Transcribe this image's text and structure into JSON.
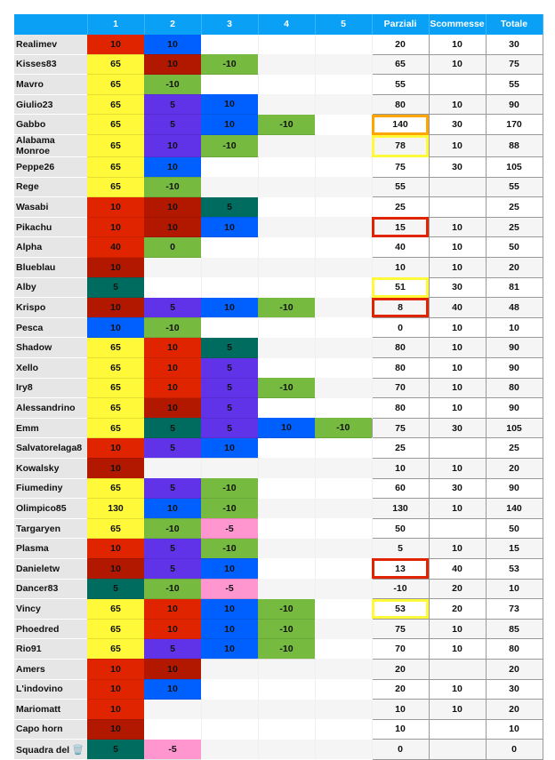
{
  "header": {
    "name": "",
    "rounds": [
      "1",
      "2",
      "3",
      "4",
      "5"
    ],
    "parziali": "Parziali",
    "scommesse": "Scommesse",
    "totale": "Totale"
  },
  "colors": {
    "R": "#e02400",
    "D": "#b21800",
    "B": "#0060ff",
    "Y": "#fff93a",
    "G": "#76bb40",
    "P": "#6033e8",
    "T": "#006b5f",
    "K": "#ff96d0",
    "header": "#0aa0f5",
    "hl_orange": "#ffa500",
    "hl_yellow": "#fff93a",
    "hl_red": "#e02400"
  },
  "rows": [
    {
      "name": "Realimev",
      "cells": [
        [
          "10",
          "R"
        ],
        [
          "10",
          "B"
        ]
      ],
      "parziali": "20",
      "scommesse": "10",
      "totale": "30"
    },
    {
      "name": "Kisses83",
      "cells": [
        [
          "65",
          "Y"
        ],
        [
          "10",
          "D"
        ],
        [
          "-10",
          "G"
        ]
      ],
      "parziali": "65",
      "scommesse": "10",
      "totale": "75"
    },
    {
      "name": "Mavro",
      "cells": [
        [
          "65",
          "Y"
        ],
        [
          "-10",
          "G"
        ]
      ],
      "parziali": "55",
      "scommesse": "",
      "totale": "55"
    },
    {
      "name": "Giulio23",
      "cells": [
        [
          "65",
          "Y"
        ],
        [
          "5",
          "P"
        ],
        [
          "10",
          "B"
        ]
      ],
      "parziali": "80",
      "scommesse": "10",
      "totale": "90"
    },
    {
      "name": "Gabbo",
      "cells": [
        [
          "65",
          "Y"
        ],
        [
          "5",
          "P"
        ],
        [
          "10",
          "B"
        ],
        [
          "-10",
          "G"
        ]
      ],
      "parziali": "140",
      "scommesse": "30",
      "totale": "170",
      "highlight": "hl_orange"
    },
    {
      "name": "Alabama Monroe",
      "cells": [
        [
          "65",
          "Y"
        ],
        [
          "10",
          "P"
        ],
        [
          "-10",
          "G"
        ]
      ],
      "parziali": "78",
      "scommesse": "10",
      "totale": "88",
      "highlight": "hl_yellow"
    },
    {
      "name": "Peppe26",
      "cells": [
        [
          "65",
          "Y"
        ],
        [
          "10",
          "B"
        ]
      ],
      "parziali": "75",
      "scommesse": "30",
      "totale": "105"
    },
    {
      "name": "Rege",
      "cells": [
        [
          "65",
          "Y"
        ],
        [
          "-10",
          "G"
        ]
      ],
      "parziali": "55",
      "scommesse": "",
      "totale": "55"
    },
    {
      "name": "Wasabi",
      "cells": [
        [
          "10",
          "R"
        ],
        [
          "10",
          "D"
        ],
        [
          "5",
          "T"
        ]
      ],
      "parziali": "25",
      "scommesse": "",
      "totale": "25"
    },
    {
      "name": "Pikachu",
      "cells": [
        [
          "10",
          "R"
        ],
        [
          "10",
          "D"
        ],
        [
          "10",
          "B"
        ]
      ],
      "parziali": "15",
      "scommesse": "10",
      "totale": "25",
      "highlight": "hl_red"
    },
    {
      "name": "Alpha",
      "cells": [
        [
          "40",
          "R"
        ],
        [
          "0",
          "G"
        ]
      ],
      "parziali": "40",
      "scommesse": "10",
      "totale": "50"
    },
    {
      "name": "Blueblau",
      "cells": [
        [
          "10",
          "D"
        ]
      ],
      "parziali": "10",
      "scommesse": "10",
      "totale": "20"
    },
    {
      "name": "Alby",
      "cells": [
        [
          "5",
          "T"
        ]
      ],
      "parziali": "51",
      "scommesse": "30",
      "totale": "81",
      "highlight": "hl_yellow"
    },
    {
      "name": "Krispo",
      "cells": [
        [
          "10",
          "D"
        ],
        [
          "5",
          "P"
        ],
        [
          "10",
          "B"
        ],
        [
          "-10",
          "G"
        ]
      ],
      "parziali": "8",
      "scommesse": "40",
      "totale": "48",
      "highlight": "hl_red"
    },
    {
      "name": "Pesca",
      "cells": [
        [
          "10",
          "B"
        ],
        [
          "-10",
          "G"
        ]
      ],
      "parziali": "0",
      "scommesse": "10",
      "totale": "10"
    },
    {
      "name": "Shadow",
      "cells": [
        [
          "65",
          "Y"
        ],
        [
          "10",
          "R"
        ],
        [
          "5",
          "T"
        ]
      ],
      "parziali": "80",
      "scommesse": "10",
      "totale": "90"
    },
    {
      "name": "Xello",
      "cells": [
        [
          "65",
          "Y"
        ],
        [
          "10",
          "R"
        ],
        [
          "5",
          "P"
        ]
      ],
      "parziali": "80",
      "scommesse": "10",
      "totale": "90"
    },
    {
      "name": "Iry8",
      "cells": [
        [
          "65",
          "Y"
        ],
        [
          "10",
          "R"
        ],
        [
          "5",
          "P"
        ],
        [
          "-10",
          "G"
        ]
      ],
      "parziali": "70",
      "scommesse": "10",
      "totale": "80"
    },
    {
      "name": "Alessandrino",
      "cells": [
        [
          "65",
          "Y"
        ],
        [
          "10",
          "D"
        ],
        [
          "5",
          "P"
        ]
      ],
      "parziali": "80",
      "scommesse": "10",
      "totale": "90"
    },
    {
      "name": "Emm",
      "cells": [
        [
          "65",
          "Y"
        ],
        [
          "5",
          "T"
        ],
        [
          "5",
          "P"
        ],
        [
          "10",
          "B"
        ],
        [
          "-10",
          "G"
        ]
      ],
      "parziali": "75",
      "scommesse": "30",
      "totale": "105"
    },
    {
      "name": "Salvatorelaga8",
      "cells": [
        [
          "10",
          "R"
        ],
        [
          "5",
          "P"
        ],
        [
          "10",
          "B"
        ]
      ],
      "parziali": "25",
      "scommesse": "",
      "totale": "25"
    },
    {
      "name": "Kowalsky",
      "cells": [
        [
          "10",
          "D"
        ]
      ],
      "parziali": "10",
      "scommesse": "10",
      "totale": "20"
    },
    {
      "name": "Fiumediny",
      "cells": [
        [
          "65",
          "Y"
        ],
        [
          "5",
          "P"
        ],
        [
          "-10",
          "G"
        ]
      ],
      "parziali": "60",
      "scommesse": "30",
      "totale": "90"
    },
    {
      "name": "Olimpico85",
      "cells": [
        [
          "130",
          "Y"
        ],
        [
          "10",
          "B"
        ],
        [
          "-10",
          "G"
        ]
      ],
      "parziali": "130",
      "scommesse": "10",
      "totale": "140"
    },
    {
      "name": "Targaryen",
      "cells": [
        [
          "65",
          "Y"
        ],
        [
          "-10",
          "G"
        ],
        [
          "-5",
          "K"
        ]
      ],
      "parziali": "50",
      "scommesse": "",
      "totale": "50"
    },
    {
      "name": "Plasma",
      "cells": [
        [
          "10",
          "R"
        ],
        [
          "5",
          "P"
        ],
        [
          "-10",
          "G"
        ]
      ],
      "parziali": "5",
      "scommesse": "10",
      "totale": "15"
    },
    {
      "name": "Danieletw",
      "cells": [
        [
          "10",
          "D"
        ],
        [
          "5",
          "P"
        ],
        [
          "10",
          "B"
        ]
      ],
      "parziali": "13",
      "scommesse": "40",
      "totale": "53",
      "highlight": "hl_red"
    },
    {
      "name": "Dancer83",
      "cells": [
        [
          "5",
          "T"
        ],
        [
          "-10",
          "G"
        ],
        [
          "-5",
          "K"
        ]
      ],
      "parziali": "-10",
      "scommesse": "20",
      "totale": "10"
    },
    {
      "name": "Vincy",
      "cells": [
        [
          "65",
          "Y"
        ],
        [
          "10",
          "R"
        ],
        [
          "10",
          "B"
        ],
        [
          "-10",
          "G"
        ]
      ],
      "parziali": "53",
      "scommesse": "20",
      "totale": "73",
      "highlight": "hl_yellow"
    },
    {
      "name": "Phoedred",
      "cells": [
        [
          "65",
          "Y"
        ],
        [
          "10",
          "R"
        ],
        [
          "10",
          "B"
        ],
        [
          "-10",
          "G"
        ]
      ],
      "parziali": "75",
      "scommesse": "10",
      "totale": "85"
    },
    {
      "name": "Rio91",
      "cells": [
        [
          "65",
          "Y"
        ],
        [
          "5",
          "P"
        ],
        [
          "10",
          "B"
        ],
        [
          "-10",
          "G"
        ]
      ],
      "parziali": "70",
      "scommesse": "10",
      "totale": "80"
    },
    {
      "name": "Amers",
      "cells": [
        [
          "10",
          "R"
        ],
        [
          "10",
          "D"
        ]
      ],
      "parziali": "20",
      "scommesse": "",
      "totale": "20"
    },
    {
      "name": "L'indovino",
      "cells": [
        [
          "10",
          "R"
        ],
        [
          "10",
          "B"
        ]
      ],
      "parziali": "20",
      "scommesse": "10",
      "totale": "30"
    },
    {
      "name": "Mariomatt",
      "cells": [
        [
          "10",
          "R"
        ]
      ],
      "parziali": "10",
      "scommesse": "10",
      "totale": "20"
    },
    {
      "name": "Capo horn",
      "cells": [
        [
          "10",
          "D"
        ]
      ],
      "parziali": "10",
      "scommesse": "",
      "totale": "10"
    },
    {
      "name": "Squadra del 🗑️",
      "cells": [
        [
          "5",
          "T"
        ],
        [
          "-5",
          "K"
        ]
      ],
      "parziali": "0",
      "scommesse": "",
      "totale": "0"
    }
  ]
}
